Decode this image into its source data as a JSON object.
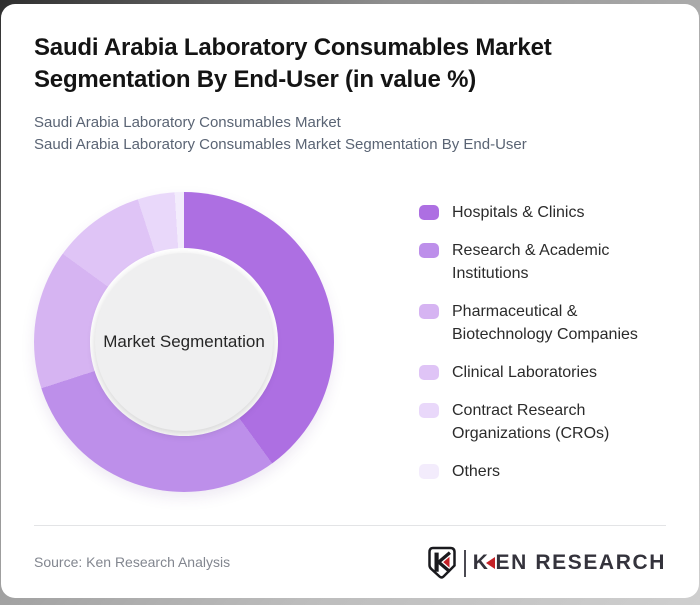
{
  "header": {
    "title": "Saudi Arabia Laboratory Consumables Market Segmentation By End-User (in value %)",
    "subtitles": [
      "Saudi Arabia Laboratory Consumables Market",
      "Saudi Arabia Laboratory Consumables Market Segmentation By End-User"
    ]
  },
  "chart_data": {
    "type": "pie",
    "donut": true,
    "title": "Saudi Arabia Laboratory Consumables Market Segmentation By End-User (in value %)",
    "units": "%",
    "center_label": "Market Segmentation",
    "legend_position": "right",
    "start_angle_deg": 0,
    "segments": [
      {
        "label": "Hospitals & Clinics",
        "value": 40,
        "color": "#ad6fe2"
      },
      {
        "label": "Research & Academic Institutions",
        "value": 30,
        "color": "#bd8fea"
      },
      {
        "label": "Pharmaceutical & Biotechnology Companies",
        "value": 15,
        "color": "#d6b4f2"
      },
      {
        "label": "Clinical Laboratories",
        "value": 10,
        "color": "#dfc4f6"
      },
      {
        "label": "Contract Research Organizations (CROs)",
        "value": 4,
        "color": "#e9d8fa"
      },
      {
        "label": "Others",
        "value": 1,
        "color": "#f3ecfc"
      }
    ]
  },
  "footer": {
    "source": "Source: Ken Research Analysis",
    "logo": {
      "wordmark_k": "K",
      "wordmark_rest": "EN RESEARCH",
      "accent_color": "#c42127",
      "text_color": "#34333c"
    }
  },
  "colors": {
    "title": "#141414",
    "subtitle": "#5a6474",
    "center_circle": "#efeff0",
    "source_text": "#82868f"
  }
}
